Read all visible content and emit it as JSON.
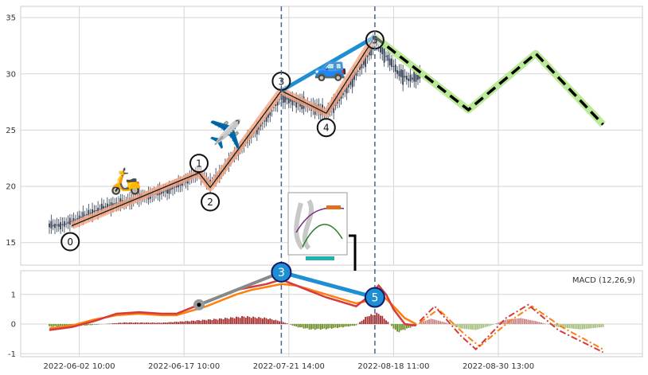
{
  "chart_data": [
    {
      "type": "candlestick",
      "panel": "price",
      "ylim": [
        13,
        36
      ],
      "yticks": [
        15,
        20,
        25,
        30,
        35
      ],
      "grid": true,
      "price_path": [
        [
          0,
          16.5
        ],
        [
          4,
          16.6
        ],
        [
          8,
          17.2
        ],
        [
          12,
          17.8
        ],
        [
          16,
          18.3
        ],
        [
          20,
          18.6
        ],
        [
          24,
          19.0
        ],
        [
          28,
          19.3
        ],
        [
          32,
          19.7
        ],
        [
          36,
          20.4
        ],
        [
          40,
          21.2
        ],
        [
          43,
          20.2
        ],
        [
          46,
          21.3
        ],
        [
          50,
          23.0
        ],
        [
          54,
          24.5
        ],
        [
          58,
          26.0
        ],
        [
          62,
          28.0
        ],
        [
          65,
          27.6
        ],
        [
          68,
          27.3
        ],
        [
          71,
          27.0
        ],
        [
          74,
          26.5
        ],
        [
          77,
          27.6
        ],
        [
          80,
          29.0
        ],
        [
          84,
          31.0
        ],
        [
          87,
          32.8
        ],
        [
          90,
          31.6
        ],
        [
          93,
          30.2
        ],
        [
          96,
          29.5
        ],
        [
          99,
          29.8
        ]
      ],
      "waves": [
        {
          "label": "0",
          "x": 6,
          "y": 16.5
        },
        {
          "label": "1",
          "x": 40,
          "y": 21.2
        },
        {
          "label": "2",
          "x": 43,
          "y": 19.9
        },
        {
          "label": "3",
          "x": 62,
          "y": 28.5
        },
        {
          "label": "4",
          "x": 74,
          "y": 26.5
        },
        {
          "label": "5",
          "x": 87,
          "y": 33.3
        }
      ],
      "impulse_line": [
        [
          6,
          16.5
        ],
        [
          40,
          21.2
        ],
        [
          43,
          19.9
        ],
        [
          62,
          28.5
        ],
        [
          74,
          26.5
        ],
        [
          87,
          33.3
        ]
      ],
      "wave_3_to_5_line": [
        [
          62,
          28.5
        ],
        [
          87,
          33.3
        ]
      ],
      "projection": [
        [
          87,
          33.3
        ],
        [
          112,
          26.8
        ],
        [
          130,
          31.8
        ],
        [
          148,
          25.5
        ]
      ],
      "vlines_x": [
        62,
        87
      ],
      "icons": [
        "scooter-emoji",
        "airplane-emoji",
        "car-emoji"
      ],
      "colors": {
        "impulse_glow": "#f4a582",
        "blue": "#1f8fd4",
        "projection_glow": "#b2e88c",
        "candle": "#2f3b52"
      }
    },
    {
      "type": "line",
      "panel": "indicator",
      "legend_text": "MACD (12,26,9)",
      "legend_position": "top-right",
      "ylim": [
        -1.1,
        1.8
      ],
      "yticks": [
        -1,
        0,
        1
      ],
      "xticks": [
        {
          "x": 8,
          "label": "2022-06-02 10:00"
        },
        {
          "x": 36,
          "label": "2022-06-17 10:00"
        },
        {
          "x": 64,
          "label": "2022-07-21 14:00"
        },
        {
          "x": 92,
          "label": "2022-08-18 11:00"
        },
        {
          "x": 120,
          "label": "2022-08-30 13:00"
        }
      ],
      "macd": [
        [
          0,
          -0.2
        ],
        [
          6,
          -0.1
        ],
        [
          12,
          0.1
        ],
        [
          18,
          0.35
        ],
        [
          24,
          0.4
        ],
        [
          30,
          0.35
        ],
        [
          34,
          0.35
        ],
        [
          38,
          0.55
        ],
        [
          42,
          0.75
        ],
        [
          46,
          0.95
        ],
        [
          50,
          1.15
        ],
        [
          54,
          1.25
        ],
        [
          58,
          1.35
        ],
        [
          62,
          1.5
        ],
        [
          66,
          1.3
        ],
        [
          70,
          1.1
        ],
        [
          74,
          0.9
        ],
        [
          78,
          0.75
        ],
        [
          82,
          0.6
        ],
        [
          86,
          1.0
        ],
        [
          88,
          1.3
        ],
        [
          90,
          1.0
        ],
        [
          92,
          0.5
        ],
        [
          95,
          0.0
        ],
        [
          98,
          -0.05
        ]
      ],
      "signal": [
        [
          0,
          -0.15
        ],
        [
          6,
          -0.05
        ],
        [
          12,
          0.15
        ],
        [
          18,
          0.3
        ],
        [
          24,
          0.35
        ],
        [
          30,
          0.3
        ],
        [
          34,
          0.3
        ],
        [
          38,
          0.45
        ],
        [
          42,
          0.6
        ],
        [
          46,
          0.8
        ],
        [
          50,
          1.0
        ],
        [
          54,
          1.15
        ],
        [
          58,
          1.25
        ],
        [
          62,
          1.35
        ],
        [
          66,
          1.3
        ],
        [
          70,
          1.15
        ],
        [
          74,
          1.0
        ],
        [
          78,
          0.85
        ],
        [
          82,
          0.7
        ],
        [
          86,
          0.8
        ],
        [
          88,
          1.0
        ],
        [
          90,
          0.85
        ],
        [
          92,
          0.6
        ],
        [
          95,
          0.2
        ],
        [
          98,
          0.0
        ]
      ],
      "histogram_profile": [
        [
          0,
          -0.1
        ],
        [
          10,
          -0.05
        ],
        [
          20,
          0.06
        ],
        [
          30,
          0.05
        ],
        [
          38,
          0.12
        ],
        [
          46,
          0.2
        ],
        [
          52,
          0.28
        ],
        [
          58,
          0.22
        ],
        [
          62,
          0.1
        ],
        [
          66,
          -0.1
        ],
        [
          70,
          -0.2
        ],
        [
          74,
          -0.18
        ],
        [
          78,
          -0.12
        ],
        [
          82,
          -0.05
        ],
        [
          85,
          0.3
        ],
        [
          88,
          0.4
        ],
        [
          90,
          0.15
        ],
        [
          93,
          -0.3
        ],
        [
          96,
          -0.15
        ],
        [
          98,
          -0.05
        ]
      ],
      "histogram_projection_profile": [
        [
          99,
          0.05
        ],
        [
          102,
          0.18
        ],
        [
          106,
          0.05
        ],
        [
          110,
          -0.15
        ],
        [
          114,
          -0.2
        ],
        [
          118,
          -0.05
        ],
        [
          122,
          0.15
        ],
        [
          126,
          0.2
        ],
        [
          130,
          0.1
        ],
        [
          136,
          -0.1
        ],
        [
          142,
          -0.18
        ],
        [
          148,
          -0.1
        ]
      ],
      "projection_macd": [
        [
          99,
          0.1
        ],
        [
          103,
          0.6
        ],
        [
          110,
          -0.4
        ],
        [
          114,
          -0.85
        ],
        [
          122,
          0.2
        ],
        [
          128,
          0.65
        ],
        [
          136,
          -0.2
        ],
        [
          148,
          -0.95
        ]
      ],
      "projection_signal": [
        [
          99,
          0.05
        ],
        [
          104,
          0.5
        ],
        [
          111,
          -0.35
        ],
        [
          115,
          -0.75
        ],
        [
          123,
          0.1
        ],
        [
          129,
          0.6
        ],
        [
          137,
          -0.1
        ],
        [
          148,
          -0.85
        ]
      ],
      "wave_markers": [
        {
          "label": "",
          "x": 40,
          "y": 0.65
        },
        {
          "label": "3",
          "x": 62,
          "y": 1.75
        },
        {
          "label": "5",
          "x": 87,
          "y": 0.9
        }
      ],
      "colors": {
        "macd": "#d63a3a",
        "signal": "#ff7f0e",
        "hist_pos": "#a52a2a",
        "hist_neg": "#6b8e23",
        "proj_pos": "#c98080",
        "proj_neg": "#a4bf7a"
      }
    }
  ]
}
